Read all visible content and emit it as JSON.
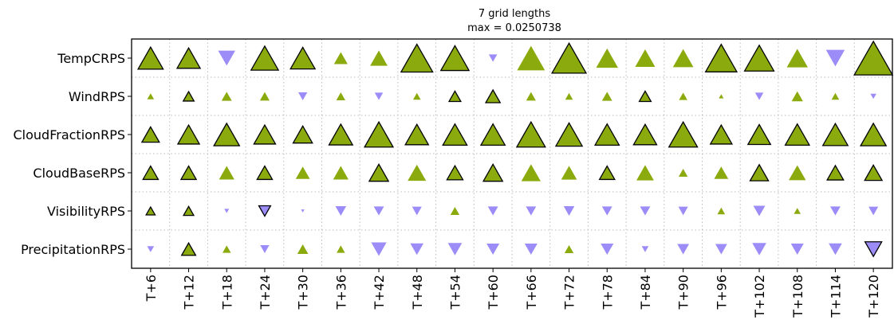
{
  "chart_data": {
    "type": "heatmap",
    "title": "7 grid lengths",
    "subtitle": "max = 0.0250738",
    "max_value": 0.0250738,
    "rows": [
      "TempCRPS",
      "WindRPS",
      "CloudFractionRPS",
      "CloudBaseRPS",
      "VisibilityRPS",
      "PrecipitationRPS"
    ],
    "columns": [
      "T+6",
      "T+12",
      "T+18",
      "T+24",
      "T+30",
      "T+36",
      "T+42",
      "T+48",
      "T+54",
      "T+60",
      "T+66",
      "T+72",
      "T+78",
      "T+84",
      "T+90",
      "T+96",
      "T+102",
      "T+108",
      "T+114",
      "T+120"
    ],
    "marker_encoding": "up-triangle = positive value (green), down-triangle = negative value (purple), size proportional to |value|, black edge = significant",
    "colors": {
      "positive": "#8aaa0e",
      "negative": "#9b8cf7",
      "edge": "#000000",
      "grid": "#bbbbbb"
    },
    "values": [
      [
        0.0108,
        0.0092,
        -0.005,
        0.0128,
        0.0104,
        0.0032,
        0.0052,
        0.0172,
        0.0136,
        -0.0012,
        0.0132,
        0.02,
        0.0082,
        0.0068,
        0.0072,
        0.0168,
        0.0148,
        0.0076,
        -0.006,
        0.025
      ],
      [
        0.0008,
        0.002,
        0.0018,
        0.0016,
        -0.0014,
        0.0014,
        -0.0012,
        0.001,
        0.0024,
        0.0036,
        0.0016,
        0.001,
        0.0018,
        0.0024,
        0.0012,
        0.0004,
        -0.0012,
        0.0022,
        0.001,
        -0.0006
      ],
      [
        0.0052,
        0.008,
        0.0112,
        0.008,
        0.0064,
        0.0096,
        0.014,
        0.0092,
        0.01,
        0.01,
        0.014,
        0.012,
        0.01,
        0.0092,
        0.014,
        0.008,
        0.0088,
        0.01,
        0.0108,
        0.0112
      ],
      [
        0.004,
        0.004,
        0.004,
        0.004,
        0.0034,
        0.004,
        0.0064,
        0.0058,
        0.0044,
        0.0064,
        0.0064,
        0.0042,
        0.004,
        0.0052,
        0.0014,
        0.0034,
        0.0058,
        0.005,
        0.0046,
        0.0052
      ],
      [
        0.0014,
        0.0018,
        -0.0004,
        -0.0024,
        -0.0002,
        -0.002,
        -0.0018,
        -0.0016,
        0.0014,
        -0.0018,
        -0.0018,
        -0.002,
        -0.0018,
        -0.0018,
        -0.0016,
        0.001,
        -0.0024,
        0.0008,
        -0.0018,
        -0.0016
      ],
      [
        -0.0008,
        0.0034,
        0.0012,
        -0.0014,
        0.002,
        0.0012,
        -0.004,
        -0.003,
        -0.0034,
        -0.0028,
        -0.0028,
        0.0014,
        -0.0028,
        -0.0008,
        -0.0024,
        -0.0024,
        -0.0034,
        -0.0028,
        -0.003,
        -0.0048
      ]
    ],
    "significant": [
      [
        1,
        1,
        0,
        1,
        1,
        0,
        0,
        1,
        1,
        0,
        0,
        1,
        0,
        0,
        0,
        1,
        1,
        0,
        0,
        1
      ],
      [
        0,
        1,
        0,
        0,
        0,
        0,
        0,
        0,
        1,
        1,
        0,
        0,
        0,
        1,
        0,
        0,
        0,
        0,
        0,
        0
      ],
      [
        1,
        1,
        1,
        1,
        1,
        1,
        1,
        1,
        1,
        1,
        1,
        1,
        1,
        1,
        1,
        1,
        1,
        1,
        1,
        1
      ],
      [
        1,
        1,
        0,
        1,
        0,
        0,
        1,
        0,
        1,
        1,
        0,
        0,
        1,
        0,
        0,
        0,
        1,
        0,
        1,
        1
      ],
      [
        1,
        1,
        0,
        1,
        0,
        0,
        0,
        0,
        0,
        0,
        0,
        0,
        0,
        0,
        0,
        0,
        0,
        0,
        0,
        0
      ],
      [
        0,
        1,
        0,
        0,
        0,
        0,
        0,
        0,
        0,
        0,
        0,
        0,
        0,
        0,
        0,
        0,
        0,
        0,
        0,
        1
      ]
    ]
  }
}
